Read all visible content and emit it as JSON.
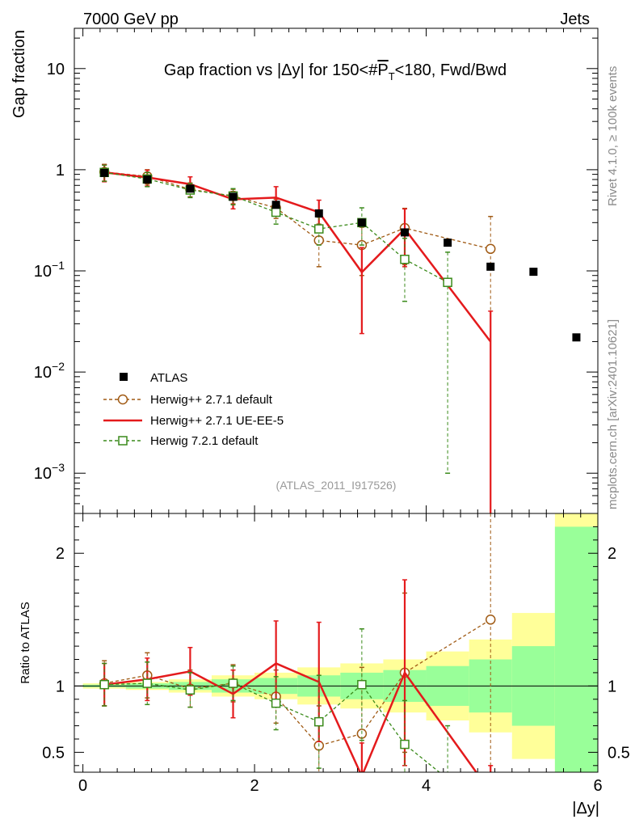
{
  "header": {
    "energy_label": "7000 GeV pp",
    "process_label": "Jets",
    "side_label_rivet": "Rivet 4.1.0, ≥ 100k events",
    "side_label_mcplots": "mcplots.cern.ch [arXiv:2401.10621]",
    "analysis_id": "(ATLAS_2011_I917526)"
  },
  "chart_data": {
    "type": "scatter",
    "title": "Gap fraction vs |Δy| for 150<#P̅T<180, Fwd/Bwd",
    "title_parts": {
      "prefix": "Gap fraction vs |Δy| for 150<#",
      "p": "P",
      "sub": "T",
      "suffix": "<180, Fwd/Bwd"
    },
    "xlabel": "|Δy|",
    "ylabel": "Gap fraction",
    "ratio_ylabel": "Ratio to ATLAS",
    "xlim": [
      -0.1,
      6.0
    ],
    "ylim_log": [
      0.0004,
      25
    ],
    "ratio_ylim": [
      0.35,
      2.3
    ],
    "x_ticks": [
      "0",
      "2",
      "4",
      "6"
    ],
    "y_ticks": [
      {
        "base": "10",
        "exp": "",
        "value": 10
      },
      {
        "base": "1",
        "exp": "",
        "value": 1
      },
      {
        "base": "10",
        "exp": "−1",
        "value": 0.1
      },
      {
        "base": "10",
        "exp": "−2",
        "value": 0.01
      },
      {
        "base": "10",
        "exp": "−3",
        "value": 0.001
      }
    ],
    "ratio_ticks": [
      "0.5",
      "1",
      "2"
    ],
    "legend": [
      "ATLAS",
      "Herwig++ 2.7.1 default",
      "Herwig++ 2.7.1 UE-EE-5",
      "Herwig 7.2.1 default"
    ],
    "data": {
      "name": "ATLAS",
      "x": [
        0.25,
        0.75,
        1.25,
        1.75,
        2.25,
        2.75,
        3.25,
        3.75,
        4.25,
        4.75,
        5.25,
        5.75
      ],
      "y": [
        0.93,
        0.8,
        0.65,
        0.54,
        0.45,
        0.37,
        0.3,
        0.24,
        0.19,
        0.11,
        0.098,
        0.022
      ],
      "band_inner": [
        0.01,
        0.02,
        0.03,
        0.05,
        0.06,
        0.08,
        0.1,
        0.12,
        0.15,
        0.2,
        0.3,
        1.2
      ],
      "band_outer": [
        0.02,
        0.03,
        0.05,
        0.08,
        0.1,
        0.14,
        0.17,
        0.2,
        0.26,
        0.35,
        0.55,
        2.0
      ]
    },
    "series": [
      {
        "name": "Herwig++ 2.7.1 default",
        "color": "#a05a14",
        "marker": "circle",
        "x": [
          0.25,
          0.75,
          1.25,
          1.75,
          2.25,
          2.75,
          3.25,
          3.75,
          4.75
        ],
        "y": [
          0.95,
          0.86,
          0.64,
          0.55,
          0.42,
          0.2,
          0.18,
          0.265,
          0.165
        ],
        "err": [
          0.18,
          0.14,
          0.1,
          0.09,
          0.09,
          0.09,
          0.09,
          0.15,
          0.18
        ],
        "ratio": [
          1.02,
          1.08,
          0.98,
          1.02,
          0.92,
          0.55,
          0.64,
          1.1,
          1.5
        ],
        "ratio_err": [
          0.17,
          0.17,
          0.14,
          0.14,
          0.2,
          0.3,
          0.5,
          0.6,
          2.0
        ]
      },
      {
        "name": "Herwig++ 2.7.1 UE-EE-5",
        "color": "#e41a1c",
        "marker": "none",
        "x": [
          0.25,
          0.75,
          1.25,
          1.75,
          2.25,
          2.75,
          3.25,
          3.75,
          4.75
        ],
        "y": [
          0.94,
          0.84,
          0.72,
          0.51,
          0.53,
          0.38,
          0.097,
          0.26,
          0.02
        ],
        "err": [
          0.18,
          0.15,
          0.13,
          0.1,
          0.15,
          0.12,
          0.073,
          0.15,
          0.02
        ],
        "ratio": [
          1.01,
          1.05,
          1.11,
          0.94,
          1.17,
          1.03,
          0.32,
          1.1,
          0.2
        ],
        "ratio_err": [
          0.16,
          0.16,
          0.18,
          0.18,
          0.32,
          0.45,
          0.25,
          0.7,
          0.2
        ]
      },
      {
        "name": "Herwig 7.2.1 default",
        "color": "#3a8a1a",
        "marker": "square",
        "x": [
          0.25,
          0.75,
          1.25,
          1.75,
          2.25,
          2.75,
          3.25,
          3.75,
          4.25
        ],
        "y": [
          0.94,
          0.81,
          0.63,
          0.55,
          0.38,
          0.26,
          0.3,
          0.13,
          0.077
        ],
        "err": [
          0.17,
          0.13,
          0.1,
          0.1,
          0.09,
          0.08,
          0.12,
          0.08,
          0.076
        ],
        "ratio": [
          1.01,
          1.02,
          0.97,
          1.02,
          0.87,
          0.73,
          1.01,
          0.56,
          0.3
        ],
        "ratio_err": [
          0.16,
          0.16,
          0.13,
          0.13,
          0.2,
          0.35,
          0.42,
          0.33,
          0.4
        ]
      }
    ]
  }
}
